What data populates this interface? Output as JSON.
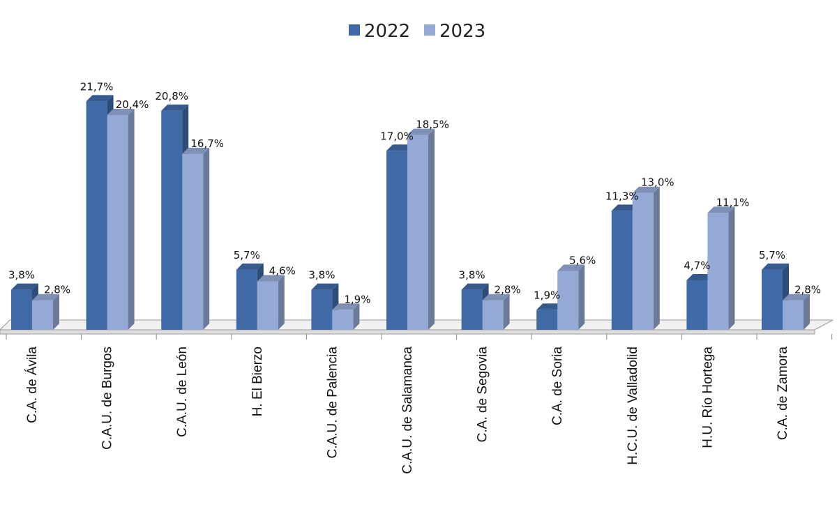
{
  "chart_data": {
    "type": "bar",
    "categories": [
      "C.A. de Ávila",
      "C.A.U. de Burgos",
      "C.A.U. de León",
      "H. El Bierzo",
      "C.A.U. de Palencia",
      "C.A.U. de Salamanca",
      "C.A. de Segovia",
      "C.A. de Soria",
      "H.C.U. de Valladolid",
      "H.U. Río Hortega",
      "C.A. de Zamora"
    ],
    "series": [
      {
        "name": "2022",
        "color": "#3f6aa6",
        "values": [
          3.8,
          21.7,
          20.8,
          5.7,
          3.8,
          17.0,
          3.8,
          1.9,
          11.3,
          4.7,
          5.7
        ],
        "labels": [
          "3,8%",
          "21,7%",
          "20,8%",
          "5,7%",
          "3,8%",
          "17,0%",
          "3,8%",
          "1,9%",
          "11,3%",
          "4,7%",
          "5,7%"
        ]
      },
      {
        "name": "2023",
        "color": "#94a9d5",
        "values": [
          2.8,
          20.4,
          16.7,
          4.6,
          1.9,
          18.5,
          2.8,
          5.6,
          13.0,
          11.1,
          2.8
        ],
        "labels": [
          "2,8%",
          "20,4%",
          "16,7%",
          "4,6%",
          "1,9%",
          "18,5%",
          "2,8%",
          "5,6%",
          "13,0%",
          "11,1%",
          "2,8%"
        ]
      }
    ],
    "legend_position": "top-center",
    "grid": false,
    "three_d": true,
    "ylim": [
      0,
      22
    ]
  }
}
